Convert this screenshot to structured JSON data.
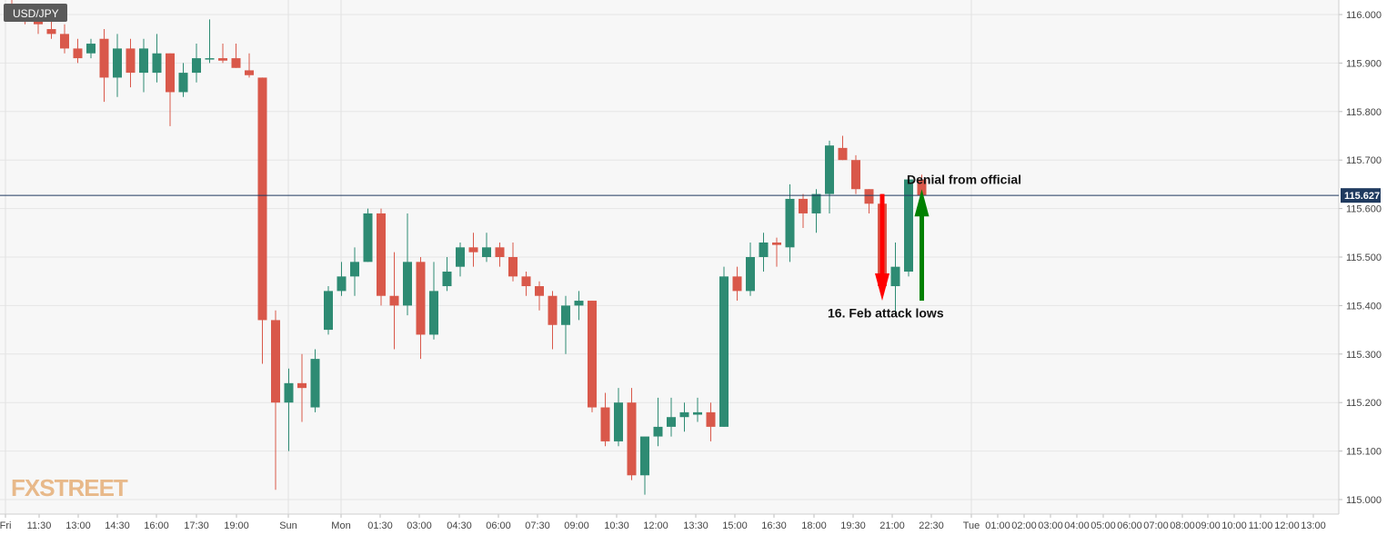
{
  "chart_data": {
    "type": "candlestick",
    "title": "USD/JPY",
    "watermark": "FXSTREET",
    "current_price": "115.627",
    "ylim": [
      114.97,
      116.03
    ],
    "y_ticks": [
      "116.000",
      "115.900",
      "115.800",
      "115.700",
      "115.600",
      "115.500",
      "115.400",
      "115.300",
      "115.200",
      "115.100",
      "115.000"
    ],
    "x_ticks": [
      "Fri",
      "11:30",
      "13:00",
      "14:30",
      "16:00",
      "17:30",
      "19:00",
      "Sun",
      "Mon",
      "01:30",
      "03:00",
      "04:30",
      "06:00",
      "07:30",
      "09:00",
      "10:30",
      "12:00",
      "13:30",
      "15:00",
      "16:30",
      "18:00",
      "19:30",
      "21:00",
      "22:30",
      "Tue",
      "01:00",
      "02:00",
      "03:00",
      "04:00",
      "05:00",
      "06:00",
      "07:00",
      "08:00",
      "09:00",
      "10:00",
      "11:00",
      "12:00",
      "13:00"
    ],
    "colors": {
      "up": "#2e8b73",
      "down": "#d9584a",
      "price_line": "#1f3a5f",
      "arrow_down": "#ff0000",
      "arrow_up": "#008000"
    },
    "candles": [
      {
        "o": 116.02,
        "h": 116.03,
        "l": 115.99,
        "c": 116.0
      },
      {
        "o": 116.0,
        "h": 116.01,
        "l": 115.98,
        "c": 115.99
      },
      {
        "o": 115.99,
        "h": 116.01,
        "l": 115.96,
        "c": 115.98
      },
      {
        "o": 115.97,
        "h": 116.0,
        "l": 115.95,
        "c": 115.96
      },
      {
        "o": 115.96,
        "h": 115.98,
        "l": 115.92,
        "c": 115.93
      },
      {
        "o": 115.93,
        "h": 115.95,
        "l": 115.9,
        "c": 115.91
      },
      {
        "o": 115.92,
        "h": 115.95,
        "l": 115.91,
        "c": 115.94
      },
      {
        "o": 115.95,
        "h": 115.97,
        "l": 115.82,
        "c": 115.87
      },
      {
        "o": 115.87,
        "h": 115.96,
        "l": 115.83,
        "c": 115.93
      },
      {
        "o": 115.93,
        "h": 115.95,
        "l": 115.85,
        "c": 115.88
      },
      {
        "o": 115.88,
        "h": 115.95,
        "l": 115.84,
        "c": 115.93
      },
      {
        "o": 115.88,
        "h": 115.96,
        "l": 115.86,
        "c": 115.92
      },
      {
        "o": 115.92,
        "h": 115.92,
        "l": 115.77,
        "c": 115.84
      },
      {
        "o": 115.84,
        "h": 115.9,
        "l": 115.83,
        "c": 115.88
      },
      {
        "o": 115.88,
        "h": 115.94,
        "l": 115.86,
        "c": 115.91
      },
      {
        "o": 115.91,
        "h": 115.99,
        "l": 115.9,
        "c": 115.91
      },
      {
        "o": 115.91,
        "h": 115.94,
        "l": 115.9,
        "c": 115.905
      },
      {
        "o": 115.91,
        "h": 115.94,
        "l": 115.89,
        "c": 115.89
      },
      {
        "o": 115.885,
        "h": 115.92,
        "l": 115.87,
        "c": 115.875
      },
      {
        "o": 115.87,
        "h": 115.87,
        "l": 115.28,
        "c": 115.37
      },
      {
        "o": 115.37,
        "h": 115.39,
        "l": 115.02,
        "c": 115.2
      },
      {
        "o": 115.2,
        "h": 115.27,
        "l": 115.1,
        "c": 115.24
      },
      {
        "o": 115.24,
        "h": 115.3,
        "l": 115.16,
        "c": 115.23
      },
      {
        "o": 115.19,
        "h": 115.31,
        "l": 115.18,
        "c": 115.29
      },
      {
        "o": 115.35,
        "h": 115.44,
        "l": 115.34,
        "c": 115.43
      },
      {
        "o": 115.43,
        "h": 115.49,
        "l": 115.42,
        "c": 115.46
      },
      {
        "o": 115.46,
        "h": 115.52,
        "l": 115.42,
        "c": 115.49
      },
      {
        "o": 115.49,
        "h": 115.6,
        "l": 115.49,
        "c": 115.59
      },
      {
        "o": 115.59,
        "h": 115.6,
        "l": 115.4,
        "c": 115.42
      },
      {
        "o": 115.42,
        "h": 115.51,
        "l": 115.31,
        "c": 115.4
      },
      {
        "o": 115.4,
        "h": 115.59,
        "l": 115.38,
        "c": 115.49
      },
      {
        "o": 115.49,
        "h": 115.5,
        "l": 115.29,
        "c": 115.34
      },
      {
        "o": 115.34,
        "h": 115.49,
        "l": 115.33,
        "c": 115.43
      },
      {
        "o": 115.44,
        "h": 115.5,
        "l": 115.43,
        "c": 115.47
      },
      {
        "o": 115.48,
        "h": 115.53,
        "l": 115.46,
        "c": 115.52
      },
      {
        "o": 115.52,
        "h": 115.55,
        "l": 115.48,
        "c": 115.51
      },
      {
        "o": 115.5,
        "h": 115.55,
        "l": 115.49,
        "c": 115.52
      },
      {
        "o": 115.52,
        "h": 115.53,
        "l": 115.48,
        "c": 115.5
      },
      {
        "o": 115.5,
        "h": 115.53,
        "l": 115.45,
        "c": 115.46
      },
      {
        "o": 115.46,
        "h": 115.47,
        "l": 115.42,
        "c": 115.44
      },
      {
        "o": 115.44,
        "h": 115.45,
        "l": 115.39,
        "c": 115.42
      },
      {
        "o": 115.42,
        "h": 115.43,
        "l": 115.31,
        "c": 115.36
      },
      {
        "o": 115.36,
        "h": 115.42,
        "l": 115.3,
        "c": 115.4
      },
      {
        "o": 115.4,
        "h": 115.43,
        "l": 115.37,
        "c": 115.41
      },
      {
        "o": 115.41,
        "h": 115.41,
        "l": 115.18,
        "c": 115.19
      },
      {
        "o": 115.19,
        "h": 115.22,
        "l": 115.11,
        "c": 115.12
      },
      {
        "o": 115.12,
        "h": 115.23,
        "l": 115.11,
        "c": 115.2
      },
      {
        "o": 115.2,
        "h": 115.23,
        "l": 115.04,
        "c": 115.05
      },
      {
        "o": 115.05,
        "h": 115.12,
        "l": 115.01,
        "c": 115.13
      },
      {
        "o": 115.13,
        "h": 115.21,
        "l": 115.11,
        "c": 115.15
      },
      {
        "o": 115.15,
        "h": 115.21,
        "l": 115.13,
        "c": 115.17
      },
      {
        "o": 115.17,
        "h": 115.2,
        "l": 115.14,
        "c": 115.18
      },
      {
        "o": 115.175,
        "h": 115.21,
        "l": 115.16,
        "c": 115.18
      },
      {
        "o": 115.18,
        "h": 115.2,
        "l": 115.12,
        "c": 115.15
      },
      {
        "o": 115.15,
        "h": 115.48,
        "l": 115.15,
        "c": 115.46
      },
      {
        "o": 115.46,
        "h": 115.48,
        "l": 115.41,
        "c": 115.43
      },
      {
        "o": 115.43,
        "h": 115.53,
        "l": 115.42,
        "c": 115.5
      },
      {
        "o": 115.5,
        "h": 115.55,
        "l": 115.47,
        "c": 115.53
      },
      {
        "o": 115.53,
        "h": 115.54,
        "l": 115.48,
        "c": 115.525
      },
      {
        "o": 115.52,
        "h": 115.65,
        "l": 115.49,
        "c": 115.62
      },
      {
        "o": 115.62,
        "h": 115.63,
        "l": 115.56,
        "c": 115.59
      },
      {
        "o": 115.59,
        "h": 115.64,
        "l": 115.55,
        "c": 115.63
      },
      {
        "o": 115.63,
        "h": 115.74,
        "l": 115.59,
        "c": 115.73
      },
      {
        "o": 115.725,
        "h": 115.75,
        "l": 115.7,
        "c": 115.7
      },
      {
        "o": 115.7,
        "h": 115.71,
        "l": 115.63,
        "c": 115.64
      },
      {
        "o": 115.64,
        "h": 115.64,
        "l": 115.59,
        "c": 115.61
      },
      {
        "o": 115.61,
        "h": 115.63,
        "l": 115.43,
        "c": 115.44
      },
      {
        "o": 115.44,
        "h": 115.53,
        "l": 115.38,
        "c": 115.48
      },
      {
        "o": 115.47,
        "h": 115.66,
        "l": 115.46,
        "c": 115.66
      },
      {
        "o": 115.66,
        "h": 115.67,
        "l": 115.62,
        "c": 115.627
      }
    ],
    "annotations": [
      {
        "text": "Denial from official",
        "x_index": 68,
        "y": 115.66
      },
      {
        "text": "16. Feb attack lows",
        "x_index": 62,
        "y": 115.385
      }
    ],
    "arrows": [
      {
        "direction": "down",
        "x_index": 66,
        "y_from": 115.63,
        "y_to": 115.41
      },
      {
        "direction": "up",
        "x_index": 69,
        "y_from": 115.41,
        "y_to": 115.64
      }
    ]
  }
}
